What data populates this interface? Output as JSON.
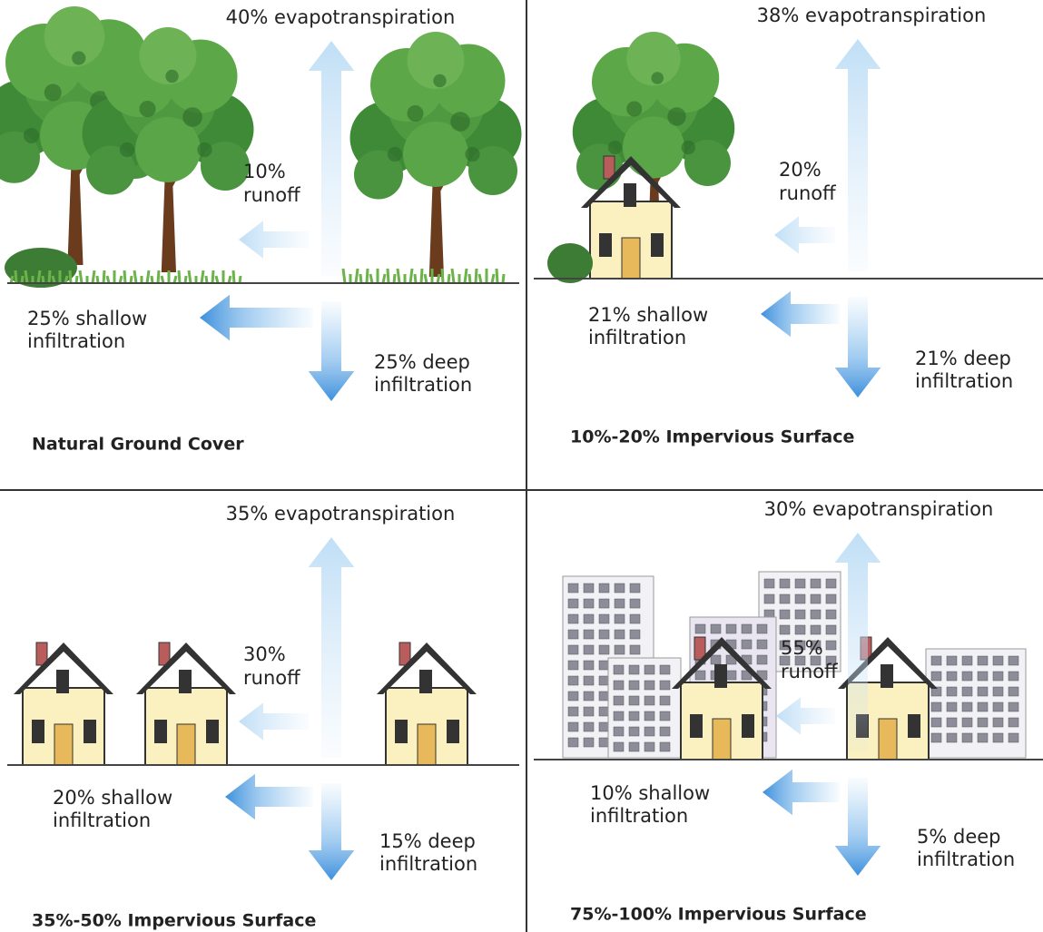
{
  "panels": [
    {
      "title": "Natural Ground Cover",
      "evapotranspiration": "40% evapotranspiration",
      "runoff": [
        "10%",
        "runoff"
      ],
      "shallow_infiltration": [
        "25% shallow",
        "infiltration"
      ],
      "deep_infiltration": [
        "25% deep",
        "infiltration"
      ]
    },
    {
      "title": "10%-20% Impervious Surface",
      "evapotranspiration": "38% evapotranspiration",
      "runoff": [
        "20%",
        "runoff"
      ],
      "shallow_infiltration": [
        "21% shallow",
        "infiltration"
      ],
      "deep_infiltration": [
        "21% deep",
        "infiltration"
      ]
    },
    {
      "title": "35%-50% Impervious Surface",
      "evapotranspiration": "35% evapotranspiration",
      "runoff": [
        "30%",
        "runoff"
      ],
      "shallow_infiltration": [
        "20% shallow",
        "infiltration"
      ],
      "deep_infiltration": [
        "15% deep",
        "infiltration"
      ]
    },
    {
      "title": "75%-100% Impervious Surface",
      "evapotranspiration": "30% evapotranspiration",
      "runoff": [
        "55%",
        "runoff"
      ],
      "shallow_infiltration": [
        "10% shallow",
        "infiltration"
      ],
      "deep_infiltration": [
        "5% deep",
        "infiltration"
      ]
    }
  ]
}
